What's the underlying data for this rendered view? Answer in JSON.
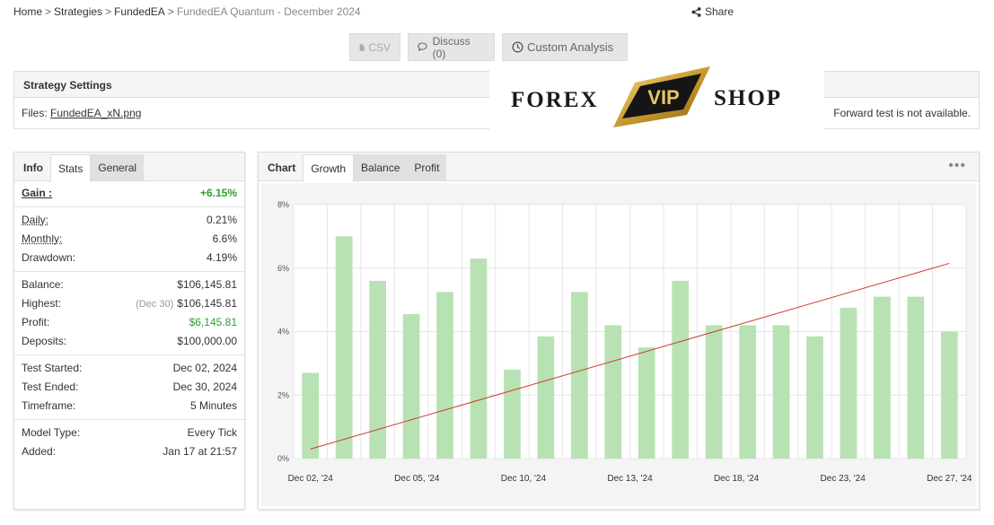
{
  "breadcrumb": [
    "Home",
    "Strategies",
    "FundedEA",
    "FundedEA Quantum - December 2024"
  ],
  "share_label": "Share",
  "toolbar": {
    "csv": "CSV",
    "discuss": "Discuss (0)",
    "custom": "Custom Analysis"
  },
  "settings": {
    "title": "Strategy Settings",
    "files_label": "Files:",
    "file_name": "FundedEA_xN.png",
    "forward_note": "Forward test is not available."
  },
  "logo": {
    "left": "FOREX",
    "middle": "VIP",
    "right": "SHOP"
  },
  "stats_tabs": [
    "Info",
    "Stats",
    "General"
  ],
  "stats": {
    "gain": {
      "label": "Gain :",
      "value": "+6.15%"
    },
    "daily": {
      "label": "Daily:",
      "value": "0.21%"
    },
    "monthly": {
      "label": "Monthly:",
      "value": "6.6%"
    },
    "drawdown": {
      "label": "Drawdown:",
      "value": "4.19%"
    },
    "balance": {
      "label": "Balance:",
      "value": "$106,145.81"
    },
    "highest": {
      "label": "Highest:",
      "note": "(Dec 30)",
      "value": "$106,145.81"
    },
    "profit": {
      "label": "Profit:",
      "value": "$6,145.81"
    },
    "deposits": {
      "label": "Deposits:",
      "value": "$100,000.00"
    },
    "test_started": {
      "label": "Test Started:",
      "value": "Dec 02, 2024"
    },
    "test_ended": {
      "label": "Test Ended:",
      "value": "Dec 30, 2024"
    },
    "timeframe": {
      "label": "Timeframe:",
      "value": "5 Minutes"
    },
    "model_type": {
      "label": "Model Type:",
      "value": "Every Tick"
    },
    "added": {
      "label": "Added:",
      "value": "Jan 17 at 21:57"
    }
  },
  "chart_tabs": [
    "Chart",
    "Growth",
    "Balance",
    "Profit"
  ],
  "chart_menu": "•••",
  "colors": {
    "bar": "#b8e2b3",
    "line": "#cc3b2e",
    "gain": "#2da12d"
  },
  "chart_data": {
    "type": "bar",
    "x_tick_labels": [
      "Dec 02, '24",
      "Dec 05, '24",
      "Dec 10, '24",
      "Dec 13, '24",
      "Dec 18, '24",
      "Dec 23, '24",
      "Dec 27, '24"
    ],
    "y_tick_labels": [
      "0%",
      "2%",
      "4%",
      "6%",
      "8%"
    ],
    "ylim": [
      0,
      8
    ],
    "series": [
      {
        "type": "bar",
        "values": [
          2.7,
          7.0,
          5.6,
          4.55,
          5.25,
          6.3,
          2.8,
          3.85,
          5.25,
          4.2,
          3.5,
          5.6,
          4.2,
          4.2,
          4.2,
          3.85,
          4.75,
          5.1,
          5.1,
          4.0
        ]
      },
      {
        "type": "line",
        "start": 0.3,
        "end": 6.15
      }
    ],
    "grid": true
  }
}
